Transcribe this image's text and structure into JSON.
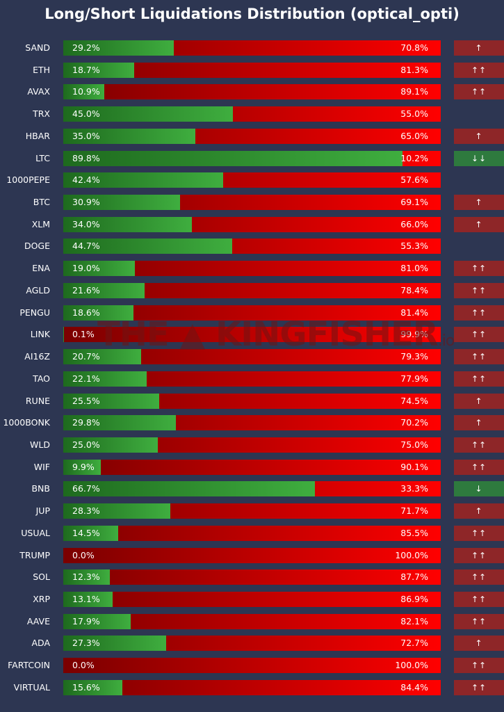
{
  "chart_data": {
    "type": "bar",
    "title": "Long/Short Liquidations Distribution (optical_opti)",
    "orientation": "horizontal-stacked",
    "xlim": [
      0,
      100
    ],
    "series_names": [
      "Long",
      "Short"
    ],
    "colors": {
      "long": "#3fae3f",
      "short": "#ff0000",
      "signal_up": "#8e2628",
      "signal_down": "#2e7a3e"
    },
    "watermark": "THE KINGFISHER .io",
    "rows": [
      {
        "symbol": "SAND",
        "long": 29.2,
        "short": 70.8,
        "long_label": "29.2%",
        "short_label": "70.8%",
        "signal": "↑",
        "signal_color": "red"
      },
      {
        "symbol": "ETH",
        "long": 18.7,
        "short": 81.3,
        "long_label": "18.7%",
        "short_label": "81.3%",
        "signal": "↑↑",
        "signal_color": "red"
      },
      {
        "symbol": "AVAX",
        "long": 10.9,
        "short": 89.1,
        "long_label": "10.9%",
        "short_label": "89.1%",
        "signal": "↑↑",
        "signal_color": "red"
      },
      {
        "symbol": "TRX",
        "long": 45.0,
        "short": 55.0,
        "long_label": "45.0%",
        "short_label": "55.0%",
        "signal": "",
        "signal_color": "none"
      },
      {
        "symbol": "HBAR",
        "long": 35.0,
        "short": 65.0,
        "long_label": "35.0%",
        "short_label": "65.0%",
        "signal": "↑",
        "signal_color": "red"
      },
      {
        "symbol": "LTC",
        "long": 89.8,
        "short": 10.2,
        "long_label": "89.8%",
        "short_label": "10.2%",
        "signal": "↓↓",
        "signal_color": "green"
      },
      {
        "symbol": "1000PEPE",
        "long": 42.4,
        "short": 57.6,
        "long_label": "42.4%",
        "short_label": "57.6%",
        "signal": "",
        "signal_color": "none"
      },
      {
        "symbol": "BTC",
        "long": 30.9,
        "short": 69.1,
        "long_label": "30.9%",
        "short_label": "69.1%",
        "signal": "↑",
        "signal_color": "red"
      },
      {
        "symbol": "XLM",
        "long": 34.0,
        "short": 66.0,
        "long_label": "34.0%",
        "short_label": "66.0%",
        "signal": "↑",
        "signal_color": "red"
      },
      {
        "symbol": "DOGE",
        "long": 44.7,
        "short": 55.3,
        "long_label": "44.7%",
        "short_label": "55.3%",
        "signal": "",
        "signal_color": "none"
      },
      {
        "symbol": "ENA",
        "long": 19.0,
        "short": 81.0,
        "long_label": "19.0%",
        "short_label": "81.0%",
        "signal": "↑↑",
        "signal_color": "red"
      },
      {
        "symbol": "AGLD",
        "long": 21.6,
        "short": 78.4,
        "long_label": "21.6%",
        "short_label": "78.4%",
        "signal": "↑↑",
        "signal_color": "red"
      },
      {
        "symbol": "PENGU",
        "long": 18.6,
        "short": 81.4,
        "long_label": "18.6%",
        "short_label": "81.4%",
        "signal": "↑↑",
        "signal_color": "red"
      },
      {
        "symbol": "LINK",
        "long": 0.1,
        "short": 99.9,
        "long_label": "0.1%",
        "short_label": "99.9%",
        "signal": "↑↑",
        "signal_color": "red"
      },
      {
        "symbol": "AI16Z",
        "long": 20.7,
        "short": 79.3,
        "long_label": "20.7%",
        "short_label": "79.3%",
        "signal": "↑↑",
        "signal_color": "red"
      },
      {
        "symbol": "TAO",
        "long": 22.1,
        "short": 77.9,
        "long_label": "22.1%",
        "short_label": "77.9%",
        "signal": "↑↑",
        "signal_color": "red"
      },
      {
        "symbol": "RUNE",
        "long": 25.5,
        "short": 74.5,
        "long_label": "25.5%",
        "short_label": "74.5%",
        "signal": "↑",
        "signal_color": "red"
      },
      {
        "symbol": "1000BONK",
        "long": 29.8,
        "short": 70.2,
        "long_label": "29.8%",
        "short_label": "70.2%",
        "signal": "↑",
        "signal_color": "red"
      },
      {
        "symbol": "WLD",
        "long": 25.0,
        "short": 75.0,
        "long_label": "25.0%",
        "short_label": "75.0%",
        "signal": "↑↑",
        "signal_color": "red"
      },
      {
        "symbol": "WIF",
        "long": 9.9,
        "short": 90.1,
        "long_label": "9.9%",
        "short_label": "90.1%",
        "signal": "↑↑",
        "signal_color": "red"
      },
      {
        "symbol": "BNB",
        "long": 66.7,
        "short": 33.3,
        "long_label": "66.7%",
        "short_label": "33.3%",
        "signal": "↓",
        "signal_color": "green"
      },
      {
        "symbol": "JUP",
        "long": 28.3,
        "short": 71.7,
        "long_label": "28.3%",
        "short_label": "71.7%",
        "signal": "↑",
        "signal_color": "red"
      },
      {
        "symbol": "USUAL",
        "long": 14.5,
        "short": 85.5,
        "long_label": "14.5%",
        "short_label": "85.5%",
        "signal": "↑↑",
        "signal_color": "red"
      },
      {
        "symbol": "TRUMP",
        "long": 0.0,
        "short": 100.0,
        "long_label": "0.0%",
        "short_label": "100.0%",
        "signal": "↑↑",
        "signal_color": "red"
      },
      {
        "symbol": "SOL",
        "long": 12.3,
        "short": 87.7,
        "long_label": "12.3%",
        "short_label": "87.7%",
        "signal": "↑↑",
        "signal_color": "red"
      },
      {
        "symbol": "XRP",
        "long": 13.1,
        "short": 86.9,
        "long_label": "13.1%",
        "short_label": "86.9%",
        "signal": "↑↑",
        "signal_color": "red"
      },
      {
        "symbol": "AAVE",
        "long": 17.9,
        "short": 82.1,
        "long_label": "17.9%",
        "short_label": "82.1%",
        "signal": "↑↑",
        "signal_color": "red"
      },
      {
        "symbol": "ADA",
        "long": 27.3,
        "short": 72.7,
        "long_label": "27.3%",
        "short_label": "72.7%",
        "signal": "↑",
        "signal_color": "red"
      },
      {
        "symbol": "FARTCOIN",
        "long": 0.0,
        "short": 100.0,
        "long_label": "0.0%",
        "short_label": "100.0%",
        "signal": "↑↑",
        "signal_color": "red"
      },
      {
        "symbol": "VIRTUAL",
        "long": 15.6,
        "short": 84.4,
        "long_label": "15.6%",
        "short_label": "84.4%",
        "signal": "↑↑",
        "signal_color": "red"
      }
    ]
  }
}
